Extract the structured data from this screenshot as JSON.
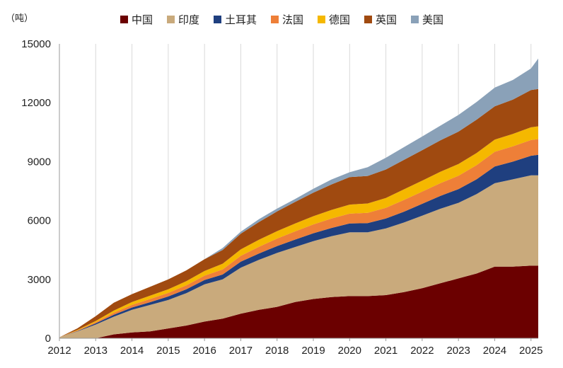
{
  "chart_data": {
    "type": "area",
    "stacked": true,
    "unit_label": "（吨）",
    "title": "",
    "xlabel": "",
    "ylabel": "",
    "ylim": [
      0,
      15000
    ],
    "y_ticks": [
      0,
      3000,
      6000,
      9000,
      12000,
      15000
    ],
    "x_ticks": [
      "2012",
      "2013",
      "2014",
      "2015",
      "2016",
      "2017",
      "2018",
      "2019",
      "2020",
      "2021",
      "2022",
      "2023",
      "2024",
      "2025"
    ],
    "xlim": [
      2012.0,
      2025.2
    ],
    "grid": "vertical",
    "legend_position": "top",
    "x": [
      2012.0,
      2012.5,
      2013.0,
      2013.5,
      2014.0,
      2014.5,
      2015.0,
      2015.5,
      2016.0,
      2016.5,
      2017.0,
      2017.5,
      2018.0,
      2018.5,
      2019.0,
      2019.5,
      2020.0,
      2020.5,
      2021.0,
      2021.5,
      2022.0,
      2022.5,
      2023.0,
      2023.5,
      2024.0,
      2024.5,
      2025.0,
      2025.2
    ],
    "series": [
      {
        "name": "中国",
        "color": "#6b0000",
        "values": [
          0,
          0,
          0,
          200,
          300,
          350,
          500,
          650,
          850,
          1000,
          1250,
          1450,
          1600,
          1850,
          2000,
          2100,
          2150,
          2150,
          2200,
          2350,
          2550,
          2800,
          3050,
          3300,
          3650,
          3650,
          3700,
          3700
        ]
      },
      {
        "name": "印度",
        "color": "#c9aa7c",
        "values": [
          50,
          350,
          700,
          900,
          1150,
          1350,
          1450,
          1650,
          1900,
          2000,
          2350,
          2550,
          2750,
          2800,
          2950,
          3100,
          3250,
          3250,
          3400,
          3550,
          3700,
          3800,
          3850,
          4050,
          4250,
          4450,
          4600,
          4600
        ]
      },
      {
        "name": "土耳其",
        "color": "#1f3f7f",
        "values": [
          0,
          20,
          60,
          100,
          120,
          140,
          180,
          200,
          220,
          250,
          300,
          320,
          350,
          380,
          400,
          420,
          450,
          470,
          500,
          550,
          600,
          650,
          700,
          750,
          850,
          900,
          1000,
          1050
        ]
      },
      {
        "name": "法国",
        "color": "#ee7f38",
        "values": [
          0,
          30,
          60,
          100,
          130,
          160,
          180,
          200,
          220,
          260,
          300,
          340,
          380,
          420,
          450,
          480,
          500,
          520,
          550,
          600,
          620,
          650,
          680,
          720,
          750,
          780,
          800,
          800
        ]
      },
      {
        "name": "德国",
        "color": "#f5b800",
        "values": [
          0,
          30,
          60,
          110,
          150,
          170,
          190,
          210,
          240,
          290,
          330,
          360,
          380,
          400,
          420,
          440,
          460,
          480,
          500,
          540,
          560,
          580,
          600,
          620,
          620,
          630,
          650,
          650
        ]
      },
      {
        "name": "英国",
        "color": "#a04a10",
        "values": [
          0,
          80,
          250,
          400,
          400,
          450,
          500,
          550,
          600,
          700,
          800,
          900,
          1000,
          1100,
          1200,
          1300,
          1400,
          1400,
          1450,
          1500,
          1550,
          1600,
          1650,
          1700,
          1700,
          1750,
          1900,
          1900
        ]
      },
      {
        "name": "美国",
        "color": "#8aa1b8",
        "values": [
          0,
          0,
          0,
          0,
          0,
          0,
          0,
          0,
          0,
          100,
          100,
          150,
          150,
          150,
          200,
          250,
          250,
          450,
          600,
          650,
          700,
          750,
          850,
          900,
          950,
          1000,
          1100,
          1550
        ]
      }
    ]
  }
}
